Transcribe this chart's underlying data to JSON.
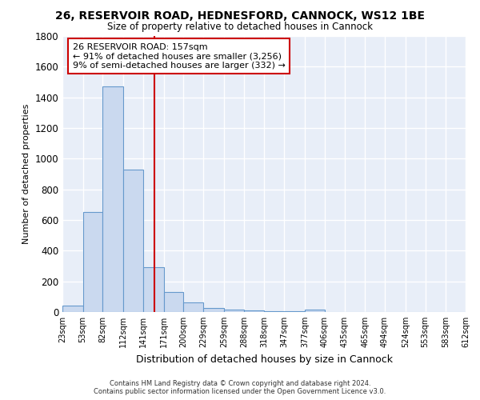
{
  "title1": "26, RESERVOIR ROAD, HEDNESFORD, CANNOCK, WS12 1BE",
  "title2": "Size of property relative to detached houses in Cannock",
  "xlabel": "Distribution of detached houses by size in Cannock",
  "ylabel": "Number of detached properties",
  "bin_edges": [
    23,
    53,
    82,
    112,
    141,
    171,
    200,
    229,
    259,
    288,
    318,
    347,
    377,
    406,
    435,
    465,
    494,
    524,
    553,
    583,
    612
  ],
  "bar_heights": [
    40,
    650,
    1470,
    930,
    290,
    130,
    65,
    25,
    15,
    10,
    5,
    3,
    15,
    0,
    0,
    0,
    0,
    0,
    0,
    0
  ],
  "bar_color": "#cad9ef",
  "bar_edge_color": "#6699cc",
  "vline_x": 157,
  "vline_color": "#cc0000",
  "ylim": [
    0,
    1800
  ],
  "yticks": [
    0,
    200,
    400,
    600,
    800,
    1000,
    1200,
    1400,
    1600,
    1800
  ],
  "annotation_line1": "26 RESERVOIR ROAD: 157sqm",
  "annotation_line2": "← 91% of detached houses are smaller (3,256)",
  "annotation_line3": "9% of semi-detached houses are larger (332) →",
  "annotation_box_color": "#ffffff",
  "annotation_box_edge": "#cc0000",
  "footer_text": "Contains HM Land Registry data © Crown copyright and database right 2024.\nContains public sector information licensed under the Open Government Licence v3.0.",
  "bg_color": "#e8eef8",
  "grid_color": "#ffffff",
  "tick_labels": [
    "23sqm",
    "53sqm",
    "82sqm",
    "112sqm",
    "141sqm",
    "171sqm",
    "200sqm",
    "229sqm",
    "259sqm",
    "288sqm",
    "318sqm",
    "347sqm",
    "377sqm",
    "406sqm",
    "435sqm",
    "465sqm",
    "494sqm",
    "524sqm",
    "553sqm",
    "583sqm",
    "612sqm"
  ]
}
